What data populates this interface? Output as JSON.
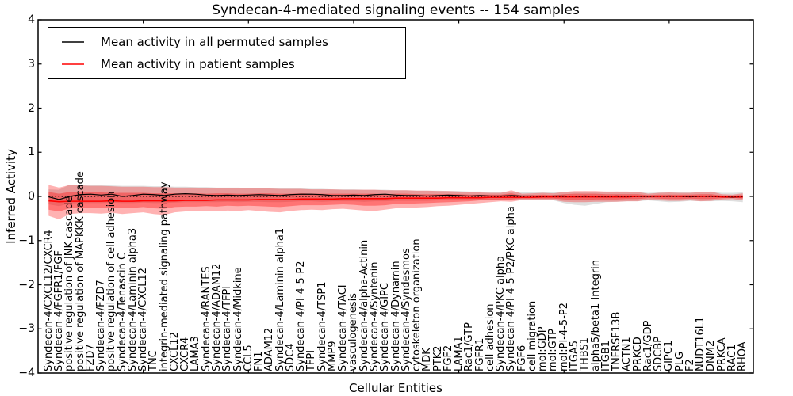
{
  "chart_data": {
    "type": "line",
    "title": "Syndecan-4-mediated signaling events -- 154 samples",
    "xlabel": "Cellular Entities",
    "ylabel": "Inferred Activity",
    "ylim": [
      -4,
      4
    ],
    "y_ticks": [
      4,
      3,
      2,
      1,
      0,
      -1,
      -2,
      -3,
      -4
    ],
    "x_major_ticks": [
      10,
      20,
      30,
      40,
      50,
      60
    ],
    "grid": false,
    "legend_position": "upper-left",
    "baseline": 0,
    "categories": [
      "Syndecan-4/CXCL12/CXCR4",
      "Syndecan-4/FGFR1/FGF",
      "positive regulation of JNK cascade",
      "positive regulation of MAPKKK cascade",
      "FZD7",
      "Syndecan-4/FZD7",
      "positive regulation of cell adhesion",
      "Syndecan-4/Tenascin C",
      "Syndecan-4/Laminin alpha3",
      "Syndecan-4/CXCL12",
      "TNC",
      "integrin-mediated signaling pathway",
      "CXCL12",
      "CXCR4",
      "LAMA3",
      "Syndecan-4/RANTES",
      "Syndecan-4/ADAM12",
      "Syndecan-4/TFPI",
      "Syndecan-4/Midkine",
      "CCL5",
      "FN1",
      "ADAM12",
      "Syndecan-4/Laminin alpha1",
      "SDC4",
      "Syndecan-4/PI-4-5-P2",
      "TFPI",
      "Syndecan-4/TSP1",
      "MMP9",
      "Syndecan-4/TACI",
      "vasculogenesis",
      "Syndecan-4/alpha-Actinin",
      "Syndecan-4/Syntenin",
      "Syndecan-4/GIPC",
      "Syndecan-4/Dynamin",
      "Syndecan-4/Syndesmos",
      "cytoskeleton organization",
      "MDK",
      "PTK2",
      "FGF2",
      "LAMA1",
      "Rac1/GTP",
      "FGFR1",
      "cell adhesion",
      "Syndecan-4/PKC alpha",
      "Syndecan-4/PI-4-5-P2/PKC alpha",
      "FGF6",
      "cell migration",
      "mol:GDP",
      "mol:GTP",
      "mol:PI-4-5-P2",
      "ITGA5",
      "THBS1",
      "alpha5/beta1 Integrin",
      "ITGB1",
      "TNFRSF13B",
      "ACTN1",
      "PRKCD",
      "Rac1/GDP",
      "SDCBP",
      "GIPC1",
      "PLG",
      "F2",
      "NUDT16L1",
      "DNM2",
      "PRKCA",
      "RAC1",
      "RHOA"
    ],
    "series": [
      {
        "name": "Mean activity in all permuted samples",
        "color": "#000000",
        "style": "solid",
        "values": [
          -0.01,
          -0.07,
          0.0,
          0.04,
          0.05,
          0.03,
          0.05,
          0.0,
          0.02,
          0.05,
          0.04,
          0.02,
          0.05,
          0.06,
          0.05,
          0.03,
          0.02,
          0.03,
          0.02,
          0.03,
          0.04,
          0.03,
          0.02,
          0.04,
          0.05,
          0.05,
          0.04,
          0.02,
          0.02,
          0.03,
          0.02,
          0.04,
          0.05,
          0.03,
          0.02,
          0.02,
          0.01,
          0.02,
          0.03,
          0.02,
          0.01,
          0.02,
          0.01,
          0.01,
          0.02,
          0.01,
          0.01,
          0.0,
          0.01,
          0.01,
          0.0,
          0.01,
          0.0,
          0.0,
          0.01,
          0.0,
          0.0,
          0.0,
          0.0,
          0.01,
          0.0,
          -0.01,
          0.0,
          0.01,
          -0.01,
          -0.02,
          -0.01
        ]
      },
      {
        "name": "Mean activity in patient samples",
        "color": "#ff0000",
        "style": "solid",
        "values": [
          -0.1,
          -0.12,
          -0.11,
          -0.11,
          -0.11,
          -0.11,
          -0.1,
          -0.11,
          -0.11,
          -0.1,
          -0.1,
          -0.1,
          -0.1,
          -0.09,
          -0.09,
          -0.09,
          -0.08,
          -0.08,
          -0.08,
          -0.08,
          -0.07,
          -0.07,
          -0.07,
          -0.07,
          -0.06,
          -0.06,
          -0.06,
          -0.06,
          -0.05,
          -0.05,
          -0.05,
          -0.05,
          -0.05,
          -0.04,
          -0.04,
          -0.04,
          -0.04,
          -0.04,
          -0.03,
          -0.03,
          -0.03,
          -0.03,
          -0.02,
          -0.02,
          -0.02,
          -0.02,
          -0.02,
          -0.01,
          -0.01,
          -0.01,
          -0.01,
          -0.01,
          -0.01,
          -0.01,
          -0.01,
          -0.01,
          0.0,
          0.0,
          0.0,
          0.0,
          0.0,
          0.0,
          0.0,
          0.0,
          -0.01,
          -0.01,
          -0.01
        ]
      }
    ],
    "bands": [
      {
        "name": "permuted-samples-range",
        "color": "#808080",
        "opacity": 0.25,
        "upper": [
          0.16,
          0.15,
          0.27,
          0.27,
          0.26,
          0.26,
          0.25,
          0.24,
          0.24,
          0.24,
          0.23,
          0.23,
          0.22,
          0.22,
          0.21,
          0.21,
          0.2,
          0.2,
          0.2,
          0.19,
          0.19,
          0.19,
          0.18,
          0.18,
          0.18,
          0.17,
          0.17,
          0.16,
          0.16,
          0.16,
          0.15,
          0.15,
          0.15,
          0.14,
          0.14,
          0.13,
          0.13,
          0.13,
          0.12,
          0.12,
          0.11,
          0.11,
          0.1,
          0.1,
          0.11,
          0.09,
          0.09,
          0.09,
          0.09,
          0.1,
          0.1,
          0.11,
          0.1,
          0.1,
          0.11,
          0.1,
          0.1,
          0.08,
          0.09,
          0.1,
          0.09,
          0.09,
          0.1,
          0.11,
          0.08,
          0.08,
          0.09
        ],
        "lower": [
          -0.18,
          -0.22,
          -0.16,
          -0.15,
          -0.15,
          -0.15,
          -0.14,
          -0.15,
          -0.15,
          -0.14,
          -0.15,
          -0.15,
          -0.14,
          -0.13,
          -0.13,
          -0.13,
          -0.13,
          -0.12,
          -0.13,
          -0.12,
          -0.12,
          -0.13,
          -0.13,
          -0.12,
          -0.11,
          -0.11,
          -0.12,
          -0.11,
          -0.11,
          -0.11,
          -0.12,
          -0.11,
          -0.11,
          -0.1,
          -0.1,
          -0.1,
          -0.1,
          -0.09,
          -0.09,
          -0.09,
          -0.09,
          -0.08,
          -0.08,
          -0.08,
          -0.08,
          -0.08,
          -0.08,
          -0.08,
          -0.09,
          -0.15,
          -0.19,
          -0.21,
          -0.17,
          -0.13,
          -0.12,
          -0.11,
          -0.11,
          -0.09,
          -0.11,
          -0.13,
          -0.12,
          -0.1,
          -0.11,
          -0.11,
          -0.1,
          -0.11,
          -0.13
        ]
      },
      {
        "name": "patient-samples-range-outer",
        "color": "#ff0000",
        "opacity": 0.3,
        "upper": [
          0.26,
          0.2,
          0.26,
          0.25,
          0.24,
          0.24,
          0.23,
          0.22,
          0.22,
          0.22,
          0.21,
          0.21,
          0.2,
          0.2,
          0.2,
          0.19,
          0.19,
          0.19,
          0.18,
          0.18,
          0.18,
          0.18,
          0.17,
          0.17,
          0.17,
          0.16,
          0.16,
          0.16,
          0.15,
          0.15,
          0.15,
          0.15,
          0.14,
          0.14,
          0.14,
          0.13,
          0.13,
          0.12,
          0.12,
          0.11,
          0.1,
          0.09,
          0.08,
          0.08,
          0.14,
          0.06,
          0.07,
          0.08,
          0.07,
          0.1,
          0.12,
          0.12,
          0.12,
          0.11,
          0.11,
          0.11,
          0.1,
          0.06,
          0.08,
          0.09,
          0.08,
          0.08,
          0.1,
          0.11,
          0.05,
          0.04,
          0.07
        ],
        "lower": [
          -0.44,
          -0.52,
          -0.4,
          -0.38,
          -0.38,
          -0.39,
          -0.37,
          -0.4,
          -0.38,
          -0.36,
          -0.4,
          -0.42,
          -0.36,
          -0.34,
          -0.34,
          -0.33,
          -0.34,
          -0.32,
          -0.33,
          -0.31,
          -0.33,
          -0.35,
          -0.36,
          -0.33,
          -0.31,
          -0.3,
          -0.31,
          -0.29,
          -0.28,
          -0.3,
          -0.32,
          -0.33,
          -0.3,
          -0.27,
          -0.26,
          -0.25,
          -0.24,
          -0.22,
          -0.21,
          -0.19,
          -0.17,
          -0.15,
          -0.13,
          -0.11,
          -0.12,
          -0.08,
          -0.09,
          -0.09,
          -0.08,
          -0.12,
          -0.13,
          -0.13,
          -0.12,
          -0.12,
          -0.12,
          -0.11,
          -0.11,
          -0.07,
          -0.09,
          -0.1,
          -0.1,
          -0.09,
          -0.11,
          -0.1,
          -0.07,
          -0.06,
          -0.09
        ]
      },
      {
        "name": "patient-samples-range-inner",
        "color": "#ff0000",
        "opacity": 0.35,
        "upper": [
          0.1,
          0.06,
          0.1,
          0.09,
          0.09,
          0.09,
          0.08,
          0.08,
          0.08,
          0.08,
          0.07,
          0.07,
          0.07,
          0.07,
          0.07,
          0.06,
          0.07,
          0.07,
          0.06,
          0.06,
          0.07,
          0.07,
          0.06,
          0.06,
          0.07,
          0.06,
          0.06,
          0.06,
          0.06,
          0.06,
          0.06,
          0.06,
          0.05,
          0.06,
          0.06,
          0.05,
          0.05,
          0.05,
          0.05,
          0.05,
          0.04,
          0.04,
          0.04,
          0.04,
          0.07,
          0.02,
          0.03,
          0.04,
          0.03,
          0.05,
          0.06,
          0.06,
          0.06,
          0.05,
          0.05,
          0.05,
          0.05,
          0.03,
          0.04,
          0.04,
          0.04,
          0.04,
          0.05,
          0.05,
          0.02,
          0.02,
          0.03
        ],
        "lower": [
          -0.3,
          -0.34,
          -0.27,
          -0.26,
          -0.26,
          -0.26,
          -0.25,
          -0.27,
          -0.26,
          -0.24,
          -0.27,
          -0.28,
          -0.24,
          -0.23,
          -0.23,
          -0.22,
          -0.23,
          -0.21,
          -0.22,
          -0.21,
          -0.22,
          -0.23,
          -0.24,
          -0.22,
          -0.2,
          -0.2,
          -0.2,
          -0.19,
          -0.18,
          -0.19,
          -0.21,
          -0.21,
          -0.2,
          -0.17,
          -0.17,
          -0.16,
          -0.15,
          -0.14,
          -0.13,
          -0.12,
          -0.11,
          -0.09,
          -0.08,
          -0.07,
          -0.07,
          -0.05,
          -0.05,
          -0.05,
          -0.05,
          -0.07,
          -0.08,
          -0.08,
          -0.07,
          -0.07,
          -0.07,
          -0.06,
          -0.06,
          -0.04,
          -0.05,
          -0.06,
          -0.06,
          -0.05,
          -0.06,
          -0.06,
          -0.04,
          -0.03,
          -0.05
        ]
      }
    ],
    "legend": [
      {
        "label": "Mean activity in all permuted samples",
        "color": "#000000"
      },
      {
        "label": "Mean activity in patient samples",
        "color": "#ff0000"
      }
    ]
  }
}
